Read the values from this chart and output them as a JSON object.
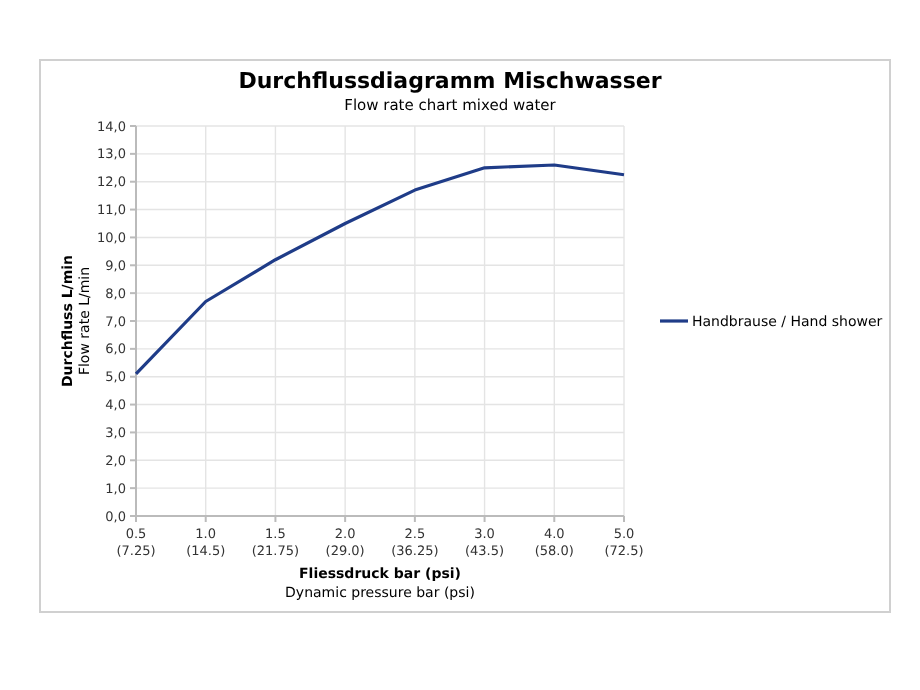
{
  "chart_data": {
    "type": "line",
    "title": "Durchflussdiagramm Mischwasser",
    "subtitle": "Flow rate chart mixed water",
    "xlabel": "Fliessdruck bar (psi)\nDynamic pressure bar (psi)",
    "ylabel": "Durchfluss L/min\nFlow rate L/min",
    "categories": [
      "0.5\n(7.25)",
      "1.0\n(14.5)",
      "1.5\n(21.75)",
      "2.0\n(29.0)",
      "2.5\n(36.25)",
      "3.0\n(43.5)",
      "4.0\n(58.0)",
      "5.0\n(72.5)"
    ],
    "series": [
      {
        "name": "Handbrause / Hand shower",
        "color": "#1f3c88",
        "values": [
          5.1,
          7.7,
          9.2,
          10.5,
          11.7,
          12.5,
          12.6,
          12.25
        ]
      }
    ],
    "ylim": [
      0,
      14
    ],
    "yticks": [
      {
        "value": 0,
        "label": "0,0"
      },
      {
        "value": 1,
        "label": "1,0"
      },
      {
        "value": 2,
        "label": "2,0"
      },
      {
        "value": 3,
        "label": "3,0"
      },
      {
        "value": 4,
        "label": "4,0"
      },
      {
        "value": 5,
        "label": "5,0"
      },
      {
        "value": 6,
        "label": "6,0"
      },
      {
        "value": 7,
        "label": "7,0"
      },
      {
        "value": 8,
        "label": "8,0"
      },
      {
        "value": 9,
        "label": "9,0"
      },
      {
        "value": 10,
        "label": "10,0"
      },
      {
        "value": 11,
        "label": "11,0"
      },
      {
        "value": 12,
        "label": "12,0"
      },
      {
        "value": 13,
        "label": "13,0"
      },
      {
        "value": 14,
        "label": "14,0"
      }
    ],
    "grid": true,
    "legend": "right",
    "marker": "none",
    "line_style": "solid"
  }
}
